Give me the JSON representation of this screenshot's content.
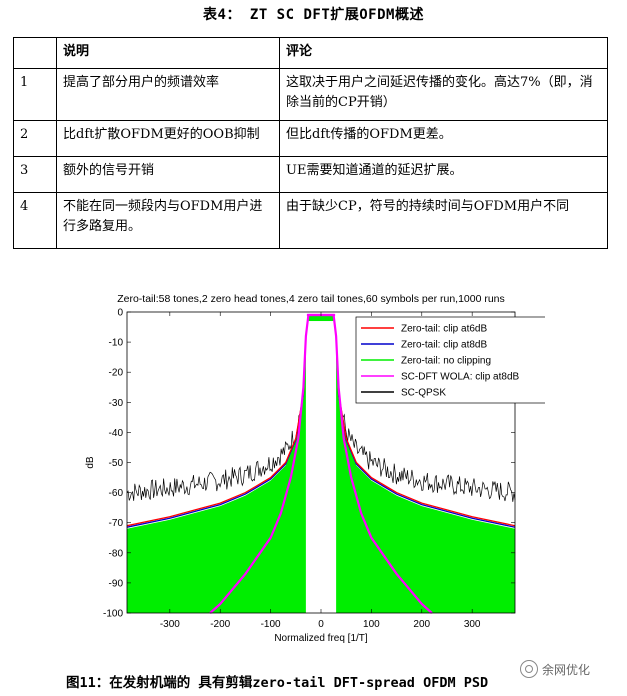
{
  "table_caption": "表4： ZT SC DFT扩展OFDM概述",
  "table": {
    "headers": [
      "",
      "说明",
      "评论"
    ],
    "rows": [
      [
        "1",
        "提高了部分用户的频谱效率",
        "这取决于用户之间延迟传播的变化。高达7%（即，消除当前的CP开销）"
      ],
      [
        "2",
        "比dft扩散OFDM更好的OOB抑制",
        "但比dft传播的OFDM更差。"
      ],
      [
        "3",
        "额外的信号开销",
        "UE需要知道通道的延迟扩展。"
      ],
      [
        "4",
        "不能在同一频段内与OFDM用户进行多路复用。",
        "由于缺少CP，符号的持续时间与OFDM用户不同"
      ]
    ]
  },
  "figure_caption": "图11：在发射机端的 具有剪辑zero-tail DFT-spread OFDM PSD",
  "watermark": "余网优化",
  "chart_data": {
    "type": "line",
    "title": "Zero-tail:58 tones,2 zero head tones,4 zero tail tones,60 symbols per run,1000 runs",
    "xlabel": "Normalized freq [1/T]",
    "ylabel": "dB",
    "xlim": [
      -385,
      385
    ],
    "ylim": [
      -100,
      0
    ],
    "xticks": [
      -300,
      -200,
      -100,
      0,
      100,
      200,
      300
    ],
    "yticks": [
      0,
      -10,
      -20,
      -30,
      -40,
      -50,
      -60,
      -70,
      -80,
      -90,
      -100
    ],
    "legend_position": "top-right",
    "series": [
      {
        "name": "Zero-tail: clip at6dB",
        "color": "#ff0000",
        "x": [
          -385,
          -300,
          -200,
          -150,
          -100,
          -70,
          -50,
          -35,
          -30,
          -25,
          25,
          30,
          35,
          50,
          70,
          100,
          150,
          200,
          300,
          385
        ],
        "y": [
          -71,
          -68,
          -63.5,
          -60,
          -55,
          -50,
          -42,
          -27,
          -10,
          -1,
          -1,
          -10,
          -27,
          -42,
          -50,
          -55,
          -60,
          -63.5,
          -68,
          -71
        ]
      },
      {
        "name": "Zero-tail: clip at8dB",
        "color": "#0000cc",
        "x": [
          -385,
          -300,
          -200,
          -150,
          -100,
          -70,
          -50,
          -35,
          -30,
          -25,
          25,
          30,
          35,
          50,
          70,
          100,
          150,
          200,
          300,
          385
        ],
        "y": [
          -71.5,
          -68.5,
          -64,
          -60.5,
          -55.5,
          -50.5,
          -42.5,
          -27.5,
          -10,
          -1,
          -1,
          -10,
          -27.5,
          -42.5,
          -50.5,
          -55.5,
          -60.5,
          -64,
          -68.5,
          -71.5
        ]
      },
      {
        "name": "Zero-tail: no clipping",
        "color": "#00ee00",
        "x": [
          -385,
          -300,
          -200,
          -150,
          -100,
          -70,
          -50,
          -35,
          -30,
          -25,
          25,
          30,
          35,
          50,
          70,
          100,
          150,
          200,
          300,
          385
        ],
        "y": [
          -72,
          -69,
          -64.5,
          -61,
          -56,
          -51,
          -43,
          -28,
          -10,
          -1,
          -1,
          -10,
          -28,
          -43,
          -51,
          -56,
          -61,
          -64.5,
          -69,
          -72
        ]
      },
      {
        "name": "SC-DFT WOLA: clip at8dB",
        "color": "#ff00ff",
        "x": [
          -220,
          -200,
          -150,
          -100,
          -80,
          -60,
          -45,
          -35,
          -30,
          -25,
          25,
          30,
          35,
          45,
          60,
          80,
          100,
          150,
          200,
          220
        ],
        "y": [
          -100,
          -97,
          -87,
          -75,
          -67,
          -55,
          -42,
          -25,
          -8,
          -1,
          -1,
          -8,
          -25,
          -42,
          -55,
          -67,
          -75,
          -87,
          -97,
          -100
        ]
      },
      {
        "name": "SC-QPSK",
        "color": "#000000",
        "x": [
          -385,
          -300,
          -200,
          -150,
          -100,
          -70,
          -50,
          -35,
          -30,
          -25,
          25,
          30,
          35,
          50,
          70,
          100,
          150,
          200,
          300,
          385
        ],
        "y": [
          -60,
          -58.5,
          -56,
          -54,
          -50,
          -46,
          -40,
          -28,
          -10,
          -1,
          -1,
          -10,
          -28,
          -40,
          -46,
          -50,
          -54,
          -56,
          -58.5,
          -60
        ]
      }
    ]
  }
}
